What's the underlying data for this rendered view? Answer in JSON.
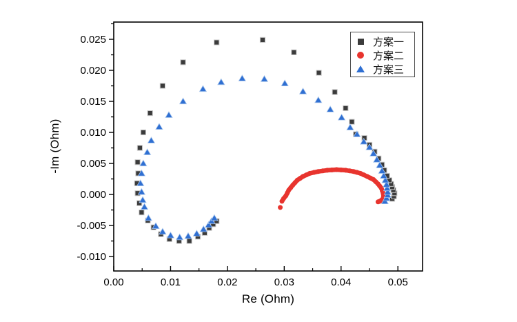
{
  "chart_data": {
    "type": "scatter",
    "title": "",
    "xlabel": "Re (Ohm)",
    "ylabel": "-Im (Ohm)",
    "xlim": [
      0,
      0.05434
    ],
    "ylim": [
      -0.012333,
      0.027778
    ],
    "xticks": [
      0,
      0.01,
      0.02,
      0.03,
      0.04,
      0.05
    ],
    "xtick_labels": [
      "0.00",
      "0.01",
      "0.02",
      "0.03",
      "0.04",
      "0.05"
    ],
    "yticks": [
      -0.01,
      -0.005,
      0.0,
      0.005,
      0.01,
      0.015,
      0.02,
      0.025
    ],
    "ytick_labels": [
      "-0.010",
      "-0.005",
      "0.000",
      "0.005",
      "0.010",
      "0.015",
      "0.020",
      "0.025"
    ],
    "grid": false,
    "legend_position": "top-right",
    "series": [
      {
        "name": "方案一",
        "marker": "square",
        "color": "#3b3b3b",
        "edge_color": "#c8c8c8",
        "connect": false,
        "points": [
          [
            0.049,
            -0.0007
          ],
          [
            0.0493,
            -0.0003
          ],
          [
            0.0494,
            0.0002
          ],
          [
            0.0492,
            0.0007
          ],
          [
            0.049,
            0.0012
          ],
          [
            0.0488,
            0.0017
          ],
          [
            0.0485,
            0.0023
          ],
          [
            0.0481,
            0.003
          ],
          [
            0.0476,
            0.0039
          ],
          [
            0.0472,
            0.0048
          ],
          [
            0.0466,
            0.0058
          ],
          [
            0.0459,
            0.0069
          ],
          [
            0.045,
            0.008
          ],
          [
            0.0441,
            0.0091
          ],
          [
            0.0426,
            0.0097
          ],
          [
            0.0419,
            0.0117
          ],
          [
            0.0408,
            0.0139
          ],
          [
            0.0389,
            0.0165
          ],
          [
            0.0361,
            0.0196
          ],
          [
            0.0317,
            0.0229
          ],
          [
            0.0262,
            0.0249
          ],
          [
            0.0181,
            0.0245
          ],
          [
            0.0122,
            0.0213
          ],
          [
            0.0086,
            0.0175
          ],
          [
            0.0064,
            0.0131
          ],
          [
            0.0052,
            0.01
          ],
          [
            0.0046,
            0.0075
          ],
          [
            0.0042,
            0.0052
          ],
          [
            0.0043,
            0.0034
          ],
          [
            0.0041,
            0.0018
          ],
          [
            0.0042,
            0.0002
          ],
          [
            0.0045,
            -0.0014
          ],
          [
            0.0049,
            -0.0029
          ],
          [
            0.006,
            -0.0042
          ],
          [
            0.007,
            -0.0053
          ],
          [
            0.0083,
            -0.0064
          ],
          [
            0.0098,
            -0.0072
          ],
          [
            0.0115,
            -0.0075
          ],
          [
            0.0133,
            -0.0075
          ],
          [
            0.0148,
            -0.0068
          ],
          [
            0.016,
            -0.0062
          ],
          [
            0.0168,
            -0.0054
          ],
          [
            0.0175,
            -0.0048
          ],
          [
            0.0181,
            -0.0043
          ]
        ]
      },
      {
        "name": "方案二",
        "marker": "circle",
        "color": "#e8342e",
        "edge_color": "#e8342e",
        "connect": true,
        "line_from": 1,
        "points": [
          [
            0.0293,
            -0.0021
          ],
          [
            0.0296,
            -0.0011
          ],
          [
            0.0299,
            -0.00065
          ],
          [
            0.0303,
            -0.0002
          ],
          [
            0.03055,
            0.00025
          ],
          [
            0.0308,
            0.0007
          ],
          [
            0.03115,
            0.0011
          ],
          [
            0.0315,
            0.0015
          ],
          [
            0.0319,
            0.0019
          ],
          [
            0.0323,
            0.0023
          ],
          [
            0.0328,
            0.0026
          ],
          [
            0.0333,
            0.0029
          ],
          [
            0.0339,
            0.00315
          ],
          [
            0.0345,
            0.0034
          ],
          [
            0.03525,
            0.00355
          ],
          [
            0.036,
            0.0037
          ],
          [
            0.0368,
            0.0038
          ],
          [
            0.0376,
            0.0039
          ],
          [
            0.0384,
            0.00395
          ],
          [
            0.0392,
            0.004
          ],
          [
            0.04,
            0.00395
          ],
          [
            0.0408,
            0.0039
          ],
          [
            0.0415,
            0.0038
          ],
          [
            0.0422,
            0.0037
          ],
          [
            0.0428,
            0.00355
          ],
          [
            0.0434,
            0.0034
          ],
          [
            0.044,
            0.00315
          ],
          [
            0.0446,
            0.0029
          ],
          [
            0.04515,
            0.00265
          ],
          [
            0.0457,
            0.0024
          ],
          [
            0.0461,
            0.00205
          ],
          [
            0.0465,
            0.0017
          ],
          [
            0.0468,
            0.00135
          ],
          [
            0.0471,
            0.001
          ],
          [
            0.04725,
            0.0006
          ],
          [
            0.0474,
            0.0002
          ],
          [
            0.04745,
            -5e-05
          ],
          [
            0.0475,
            -0.0003
          ],
          [
            0.0474,
            -0.00055
          ],
          [
            0.0473,
            -0.0008
          ],
          [
            0.04705,
            -0.00095
          ],
          [
            0.0468,
            -0.0011
          ],
          [
            0.04665,
            -0.00115
          ],
          [
            0.0465,
            -0.0012
          ]
        ]
      },
      {
        "name": "方案三",
        "marker": "triangle",
        "color": "#2f6fd2",
        "edge_color": "#a9c6ec",
        "connect": false,
        "points": [
          [
            0.0477,
            -0.0011
          ],
          [
            0.048,
            -0.0006
          ],
          [
            0.0482,
            -0.0001
          ],
          [
            0.0482,
            0.0004
          ],
          [
            0.0481,
            0.001
          ],
          [
            0.048,
            0.0016
          ],
          [
            0.0478,
            0.0023
          ],
          [
            0.0475,
            0.003
          ],
          [
            0.0472,
            0.0038
          ],
          [
            0.0468,
            0.0047
          ],
          [
            0.0463,
            0.0056
          ],
          [
            0.0457,
            0.0066
          ],
          [
            0.045,
            0.0076
          ],
          [
            0.044,
            0.0085
          ],
          [
            0.0428,
            0.0097
          ],
          [
            0.0416,
            0.0108
          ],
          [
            0.0401,
            0.0124
          ],
          [
            0.0381,
            0.0137
          ],
          [
            0.036,
            0.0152
          ],
          [
            0.0333,
            0.0166
          ],
          [
            0.0301,
            0.0179
          ],
          [
            0.0265,
            0.0186
          ],
          [
            0.0226,
            0.0187
          ],
          [
            0.0189,
            0.0181
          ],
          [
            0.0157,
            0.017
          ],
          [
            0.0122,
            0.015
          ],
          [
            0.0097,
            0.0128
          ],
          [
            0.008,
            0.0109
          ],
          [
            0.0066,
            0.0087
          ],
          [
            0.0059,
            0.0068
          ],
          [
            0.0052,
            0.005
          ],
          [
            0.0049,
            0.0034
          ],
          [
            0.0047,
            0.0018
          ],
          [
            0.0049,
            0.0004
          ],
          [
            0.0051,
            -0.0009
          ],
          [
            0.0054,
            -0.002
          ],
          [
            0.0061,
            -0.0038
          ],
          [
            0.0074,
            -0.0051
          ],
          [
            0.0086,
            -0.006
          ],
          [
            0.01,
            -0.0066
          ],
          [
            0.0116,
            -0.0069
          ],
          [
            0.0131,
            -0.0067
          ],
          [
            0.0146,
            -0.0063
          ],
          [
            0.0158,
            -0.0056
          ],
          [
            0.0167,
            -0.0049
          ],
          [
            0.0172,
            -0.0043
          ],
          [
            0.0177,
            -0.0038
          ]
        ]
      }
    ]
  },
  "colors": {
    "axis": "#000000",
    "legend_border": "#4a4a4a",
    "background": "#ffffff"
  }
}
